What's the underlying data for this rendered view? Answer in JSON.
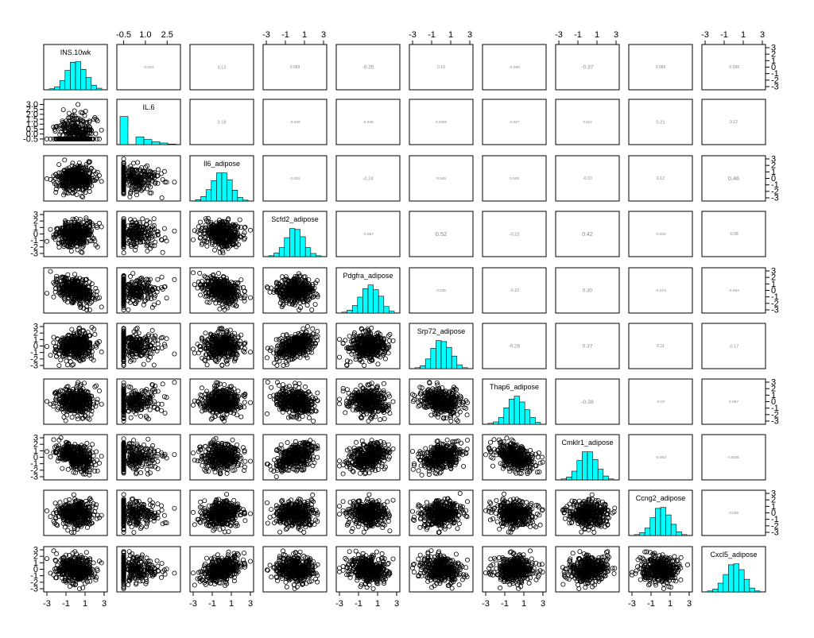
{
  "chart_data": {
    "type": "scatter",
    "layout": "pairs-matrix",
    "histogram_color": "#00ffff",
    "point_color": "#000000",
    "variables": [
      "INS.10wk",
      "IL.6",
      "Il6_adipose",
      "Scfd2_adipose",
      "Pdgfra_adipose",
      "Srp72_adipose",
      "Thap6_adipose",
      "Cmklr1_adipose",
      "Ccng2_adipose",
      "Cxcl5_adipose"
    ],
    "axis_ticks": {
      "standard": [
        "-3",
        "-1",
        "1",
        "3"
      ],
      "standard_vertical": [
        "3",
        "2",
        "1",
        "0",
        "-1",
        "-2",
        "-3"
      ],
      "il6_horizontal": [
        "-0.5",
        "1.0",
        "2.5"
      ],
      "il6_vertical": [
        "3.0",
        "2.5",
        "2.0",
        "1.5",
        "1.0",
        "0.5",
        "0.0",
        "-0.5"
      ]
    },
    "ranges": {
      "standard": [
        -3,
        3
      ],
      "il6": [
        -0.75,
        3.2
      ]
    },
    "correlations": [
      [
        "INS.10wk",
        "IL.6",
        "-0.022"
      ],
      [
        "INS.10wk",
        "Il6_adipose",
        "0.13"
      ],
      [
        "INS.10wk",
        "Scfd2_adipose",
        "0.089"
      ],
      [
        "INS.10wk",
        "Pdgfra_adipose",
        "-0.35"
      ],
      [
        "INS.10wk",
        "Srp72_adipose",
        "0.10"
      ],
      [
        "INS.10wk",
        "Thap6_adipose",
        "-0.060"
      ],
      [
        "INS.10wk",
        "Cmklr1_adipose",
        "-0.37"
      ],
      [
        "INS.10wk",
        "Ccng2_adipose",
        "0.089"
      ],
      [
        "INS.10wk",
        "Cxcl5_adipose",
        "-0.095"
      ],
      [
        "IL.6",
        "Il6_adipose",
        "0.18"
      ],
      [
        "IL.6",
        "Scfd2_adipose",
        "-0.046"
      ],
      [
        "IL.6",
        "Pdgfra_adipose",
        "-0.046"
      ],
      [
        "IL.6",
        "Srp72_adipose",
        "0.0058"
      ],
      [
        "IL.6",
        "Thap6_adipose",
        "-0.027"
      ],
      [
        "IL.6",
        "Cmklr1_adipose",
        "0.012"
      ],
      [
        "IL.6",
        "Ccng2_adipose",
        "0.21"
      ],
      [
        "IL.6",
        "Cxcl5_adipose",
        "0.12"
      ],
      [
        "Il6_adipose",
        "Scfd2_adipose",
        "-0.015"
      ],
      [
        "Il6_adipose",
        "Pdgfra_adipose",
        "-0.24"
      ],
      [
        "Il6_adipose",
        "Srp72_adipose",
        "0.049"
      ],
      [
        "Il6_adipose",
        "Thap6_adipose",
        "0.048"
      ],
      [
        "Il6_adipose",
        "Cmklr1_adipose",
        "-0.10"
      ],
      [
        "Il6_adipose",
        "Ccng2_adipose",
        "0.12"
      ],
      [
        "Il6_adipose",
        "Cxcl5_adipose",
        "0.46"
      ],
      [
        "Scfd2_adipose",
        "Pdgfra_adipose",
        "-0.067"
      ],
      [
        "Scfd2_adipose",
        "Srp72_adipose",
        "0.52"
      ],
      [
        "Scfd2_adipose",
        "Thap6_adipose",
        "-0.22"
      ],
      [
        "Scfd2_adipose",
        "Cmklr1_adipose",
        "0.42"
      ],
      [
        "Scfd2_adipose",
        "Ccng2_adipose",
        "-0.032"
      ],
      [
        "Scfd2_adipose",
        "Cxcl5_adipose",
        "-0.08"
      ],
      [
        "Pdgfra_adipose",
        "Srp72_adipose",
        "0.035"
      ],
      [
        "Pdgfra_adipose",
        "Thap6_adipose",
        "-0.10"
      ],
      [
        "Pdgfra_adipose",
        "Cmklr1_adipose",
        "0.30"
      ],
      [
        "Pdgfra_adipose",
        "Ccng2_adipose",
        "-0.074"
      ],
      [
        "Pdgfra_adipose",
        "Cxcl5_adipose",
        "-0.053"
      ],
      [
        "Srp72_adipose",
        "Thap6_adipose",
        "-0.28"
      ],
      [
        "Srp72_adipose",
        "Cmklr1_adipose",
        "0.37"
      ],
      [
        "Srp72_adipose",
        "Ccng2_adipose",
        "0.11"
      ],
      [
        "Srp72_adipose",
        "Cxcl5_adipose",
        "-0.17"
      ],
      [
        "Thap6_adipose",
        "Cmklr1_adipose",
        "-0.38"
      ],
      [
        "Thap6_adipose",
        "Ccng2_adipose",
        "-0.07"
      ],
      [
        "Thap6_adipose",
        "Cxcl5_adipose",
        "0.057"
      ],
      [
        "Cmklr1_adipose",
        "Ccng2_adipose",
        "-0.063"
      ],
      [
        "Cmklr1_adipose",
        "Cxcl5_adipose",
        "0.0026"
      ],
      [
        "Ccng2_adipose",
        "Cxcl5_adipose",
        "0.029"
      ]
    ],
    "histograms": [
      {
        "variable": "INS.10wk",
        "counts": [
          2,
          6,
          18,
          38,
          54,
          55,
          40,
          24,
          9,
          3
        ]
      },
      {
        "variable": "IL.6",
        "counts": [
          210,
          0,
          58,
          38,
          21,
          12,
          4
        ]
      },
      {
        "variable": "Il6_adipose",
        "counts": [
          3,
          10,
          25,
          45,
          62,
          62,
          47,
          24,
          8,
          2
        ]
      },
      {
        "variable": "Scfd2_adipose",
        "counts": [
          2,
          8,
          20,
          42,
          62,
          60,
          44,
          20,
          7,
          2
        ]
      },
      {
        "variable": "Pdgfra_adipose",
        "counts": [
          2,
          6,
          16,
          34,
          52,
          60,
          50,
          36,
          14,
          4
        ]
      },
      {
        "variable": "Srp72_adipose",
        "counts": [
          2,
          6,
          20,
          42,
          58,
          56,
          44,
          26,
          8,
          2
        ]
      },
      {
        "variable": "Thap6_adipose",
        "counts": [
          2,
          5,
          14,
          34,
          52,
          58,
          46,
          30,
          14,
          4
        ]
      },
      {
        "variable": "Cmklr1_adipose",
        "counts": [
          2,
          6,
          18,
          40,
          58,
          58,
          42,
          22,
          8,
          2
        ]
      },
      {
        "variable": "Ccng2_adipose",
        "counts": [
          2,
          6,
          16,
          38,
          58,
          60,
          44,
          24,
          8,
          2
        ]
      },
      {
        "variable": "Cxcl5_adipose",
        "counts": [
          2,
          6,
          18,
          36,
          56,
          58,
          46,
          26,
          8,
          2
        ]
      }
    ],
    "scatter_note_points_per_panel": 400
  }
}
